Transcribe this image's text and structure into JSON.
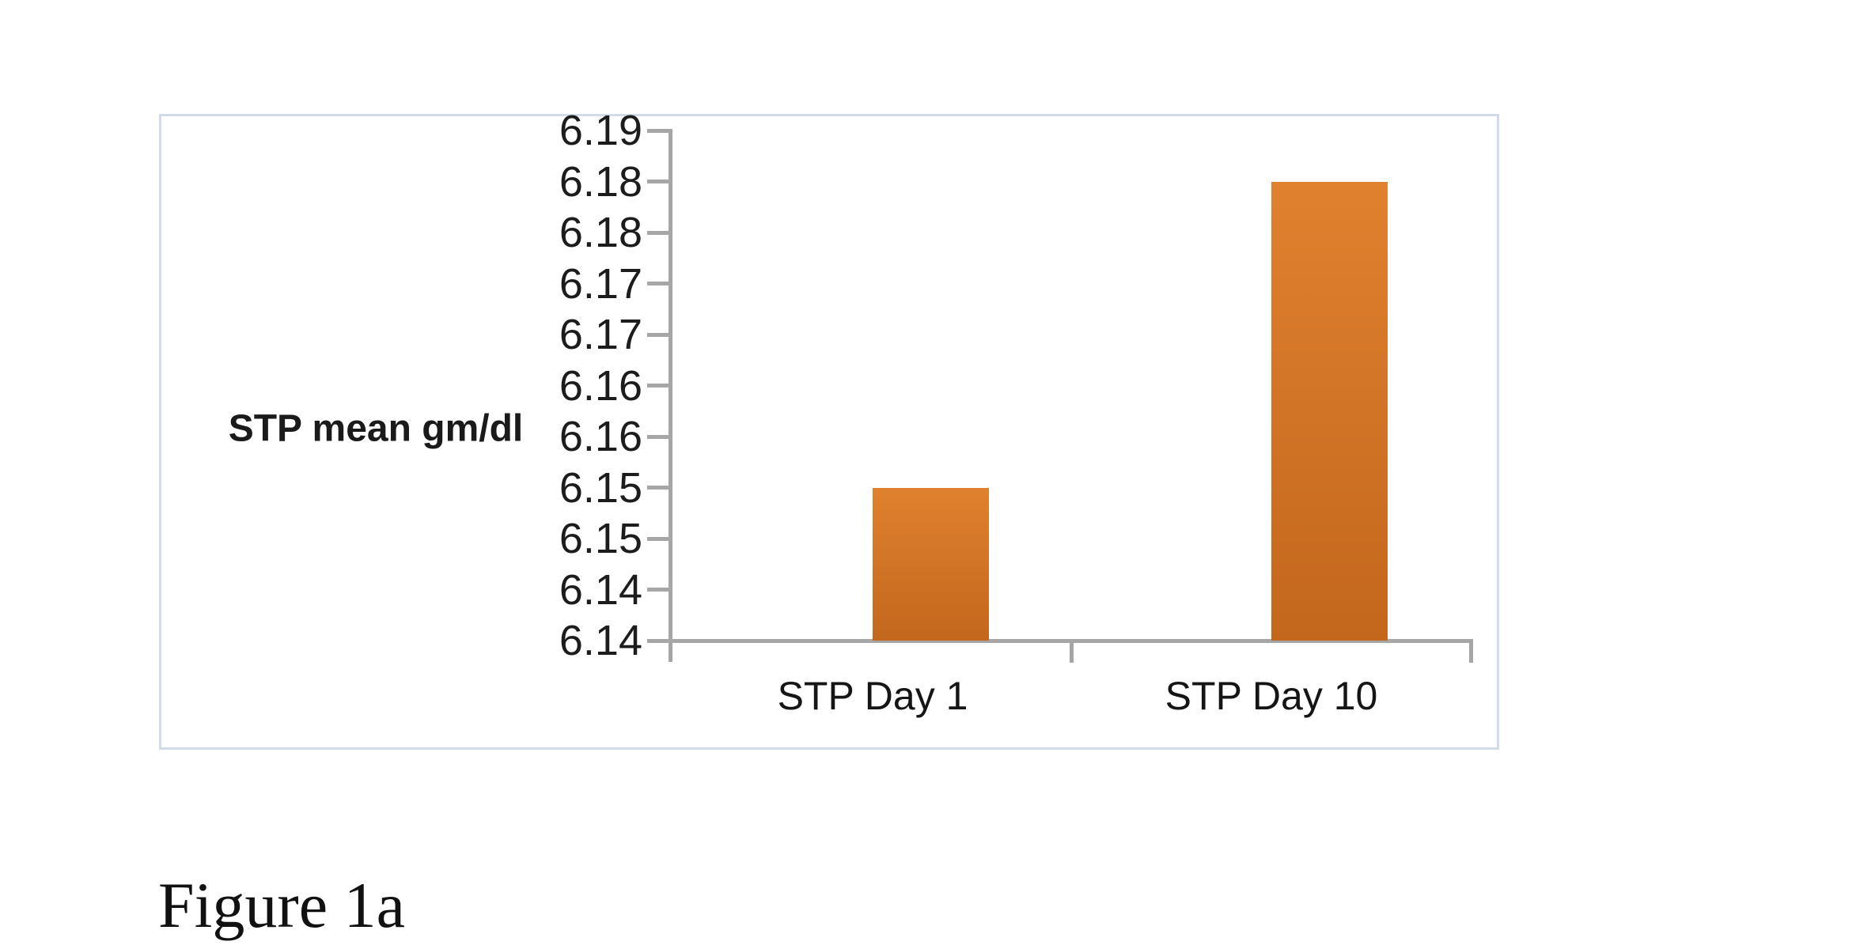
{
  "figure": {
    "caption": "Figure 1a"
  },
  "chart_data": {
    "type": "bar",
    "title": "",
    "categories": [
      "STP Day 1",
      "STP Day 10"
    ],
    "values": [
      6.15,
      6.18
    ],
    "xlabel": "",
    "ylabel": "STP mean gm/dl",
    "ylim": [
      6.135,
      6.185
    ],
    "y_tick_labels_top_to_bottom": [
      "6.19",
      "6.18",
      "6.18",
      "6.17",
      "6.17",
      "6.16",
      "6.16",
      "6.15",
      "6.15",
      "6.14",
      "6.14"
    ],
    "grid": "off",
    "legend": "none",
    "colors": {
      "bar_gradient_top": "#e0812f",
      "bar_gradient_bottom": "#c3671d",
      "axis_line": "#a6a6a6",
      "frame_border": "#d2dce8",
      "tick_text": "#1c1c1c"
    }
  }
}
